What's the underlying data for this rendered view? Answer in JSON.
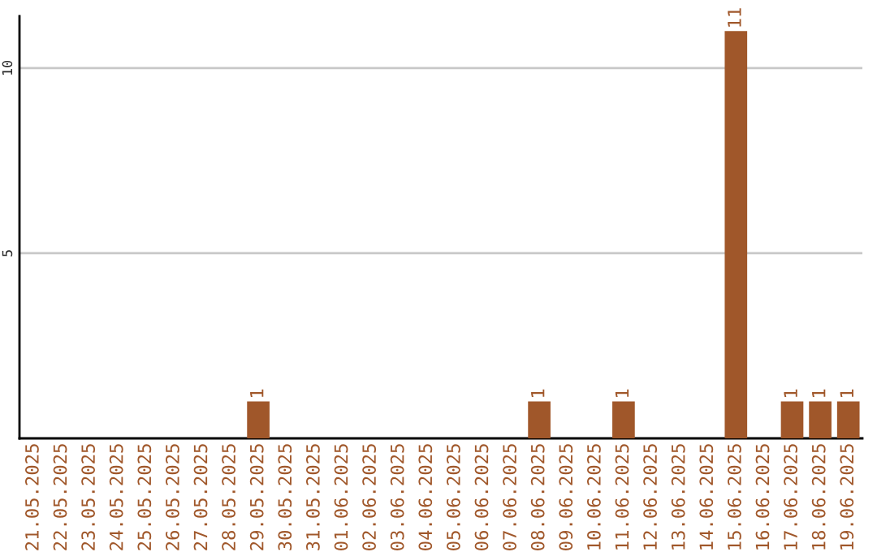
{
  "chart_data": {
    "type": "bar",
    "categories": [
      "21.05.2025",
      "22.05.2025",
      "23.05.2025",
      "24.05.2025",
      "25.05.2025",
      "26.05.2025",
      "27.05.2025",
      "28.05.2025",
      "29.05.2025",
      "30.05.2025",
      "31.05.2025",
      "01.06.2025",
      "02.06.2025",
      "03.06.2025",
      "04.06.2025",
      "05.06.2025",
      "06.06.2025",
      "07.06.2025",
      "08.06.2025",
      "09.06.2025",
      "10.06.2025",
      "11.06.2025",
      "12.06.2025",
      "13.06.2025",
      "14.06.2025",
      "15.06.2025",
      "16.06.2025",
      "17.06.2025",
      "18.06.2025",
      "19.06.2025"
    ],
    "values": [
      0,
      0,
      0,
      0,
      0,
      0,
      0,
      0,
      1,
      0,
      0,
      0,
      0,
      0,
      0,
      0,
      0,
      0,
      1,
      0,
      0,
      1,
      0,
      0,
      0,
      11,
      0,
      1,
      1,
      1
    ],
    "value_labels": [
      null,
      null,
      null,
      null,
      null,
      null,
      null,
      null,
      "1",
      null,
      null,
      null,
      null,
      null,
      null,
      null,
      null,
      null,
      "1",
      null,
      null,
      "1",
      null,
      null,
      null,
      "11",
      null,
      "1",
      "1",
      "1"
    ],
    "color": "#a0572a",
    "ylim": [
      0,
      11.4
    ],
    "yticks": [
      5,
      10
    ],
    "grid": "y",
    "legend": false
  }
}
